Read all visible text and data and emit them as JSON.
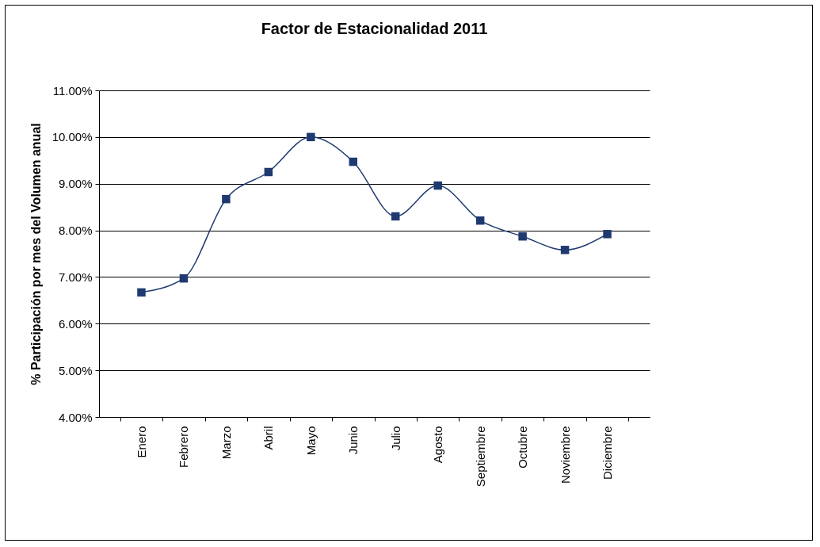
{
  "chart_data": {
    "type": "line",
    "title": "Factor de Estacionalidad 2011",
    "ylabel": "%  Participación por mes del Volumen anual",
    "categories": [
      "Enero",
      "Febrero",
      "Marzo",
      "Abril",
      "Mayo",
      "Junio",
      "Julio",
      "Agosto",
      "Septiembre",
      "Octubre",
      "Noviembre",
      "Diciembre"
    ],
    "series": [
      {
        "color": "#1f3a70",
        "values": [
          6.67,
          6.97,
          8.67,
          9.25,
          10.0,
          9.47,
          8.3,
          8.96,
          8.21,
          7.87,
          7.58,
          7.92
        ]
      }
    ],
    "ylim": [
      4,
      11
    ],
    "yticks": [
      {
        "value": 4,
        "label": "4.00%"
      },
      {
        "value": 5,
        "label": "5.00%"
      },
      {
        "value": 6,
        "label": "6.00%"
      },
      {
        "value": 7,
        "label": "7.00%"
      },
      {
        "value": 8,
        "label": "8.00%"
      },
      {
        "value": 9,
        "label": "9.00%"
      },
      {
        "value": 10,
        "label": "10.00%"
      },
      {
        "value": 11,
        "label": "11.00%"
      }
    ],
    "grid": "y",
    "marker": "square",
    "line_style": "solid"
  }
}
